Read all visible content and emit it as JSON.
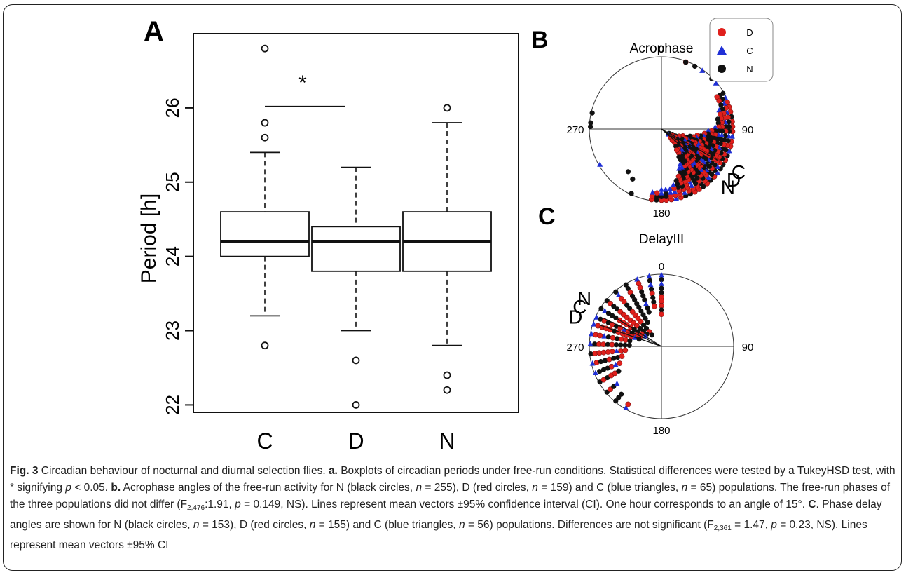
{
  "figure": {
    "panel_a_label": "A",
    "panel_b_label": "B",
    "panel_c_label": "C"
  },
  "chart_data": [
    {
      "type": "box",
      "panel": "A",
      "ylabel": "Period [h]",
      "ylim": [
        21.9,
        27.0
      ],
      "yticks": [
        "22",
        "23",
        "24",
        "25",
        "26"
      ],
      "categories": [
        "C",
        "D",
        "N"
      ],
      "boxes": [
        {
          "name": "C",
          "whisker_low": 23.2,
          "q1": 24.0,
          "median": 24.2,
          "q3": 24.6,
          "whisker_high": 25.4,
          "outliers": [
            22.8,
            25.6,
            25.8,
            26.8
          ]
        },
        {
          "name": "D",
          "whisker_low": 23.0,
          "q1": 23.8,
          "median": 24.2,
          "q3": 24.4,
          "whisker_high": 25.2,
          "outliers": [
            22.0,
            22.6
          ]
        },
        {
          "name": "N",
          "whisker_low": 22.8,
          "q1": 23.8,
          "median": 24.2,
          "q3": 24.6,
          "whisker_high": 25.8,
          "outliers": [
            22.2,
            22.4,
            26.0
          ]
        }
      ],
      "significance": {
        "between": [
          "C",
          "D"
        ],
        "marker": "*",
        "y": 26.02
      }
    },
    {
      "type": "scatter",
      "subtype": "circular",
      "panel": "B",
      "title": "Acrophase",
      "angle_labels": [
        "0",
        "90",
        "180",
        "270"
      ],
      "legend": [
        {
          "name": "D",
          "marker": "circle",
          "color": "#e0201c"
        },
        {
          "name": "C",
          "marker": "triangle",
          "color": "#1f2fd6"
        },
        {
          "name": "N",
          "marker": "circle",
          "color": "#111111"
        }
      ],
      "legend_position": "top-right",
      "mean_vectors": [
        {
          "name": "C",
          "angle_deg": 119,
          "length": 0.9
        },
        {
          "name": "D",
          "angle_deg": 125,
          "length": 0.9
        },
        {
          "name": "N",
          "angle_deg": 131,
          "length": 0.9
        }
      ],
      "series": [
        {
          "name": "N",
          "color": "#111111",
          "n": 255
        },
        {
          "name": "D",
          "color": "#e0201c",
          "n": 159
        },
        {
          "name": "C",
          "color": "#1f2fd6",
          "n": 65
        }
      ]
    },
    {
      "type": "scatter",
      "subtype": "circular",
      "panel": "C",
      "title": "DelayIII",
      "angle_labels": [
        "0",
        "90",
        "180",
        "270"
      ],
      "mean_vectors": [
        {
          "name": "N",
          "angle_deg": 302,
          "length": 0.9
        },
        {
          "name": "C",
          "angle_deg": 296,
          "length": 0.9
        },
        {
          "name": "D",
          "angle_deg": 289,
          "length": 0.9
        }
      ],
      "series": [
        {
          "name": "N",
          "color": "#111111",
          "n": 153
        },
        {
          "name": "D",
          "color": "#e0201c",
          "n": 155
        },
        {
          "name": "C",
          "color": "#1f2fd6",
          "n": 56
        }
      ]
    }
  ],
  "caption": {
    "fig_label": "Fig. 3",
    "title": "Circadian behaviour of nocturnal and diurnal selection flies.",
    "a_label": "a.",
    "a_text_1": "Boxplots of circadian periods under free-run conditions. Statistical differences were tested by a TukeyHSD test, with * signifying",
    "a_p": "p",
    "a_text_2": "< 0.05.",
    "b_label": "b.",
    "b_text_1": "Acrophase angles of the free-run activity for N (black circles,",
    "n": "n",
    "b_n1": "= 255), D (red circles,",
    "b_n2": "= 159) and C (blue triangles,",
    "b_n3": "= 65) populations. The free-run phases of the three populations did not differ (F",
    "b_sub": "2,476",
    "b_stat": ":1.91,",
    "b_p": "p",
    "b_text_2": "= 0.149, NS). Lines represent mean vectors ±95% confidence interval (CI). One hour corresponds to an angle of 15°.",
    "c_label": "C",
    "c_text_1": ". Phase delay angles are shown for N (black circles,",
    "c_n1": "= 153), D (red circles,",
    "c_n2": "= 155) and C (blue triangles,",
    "c_n3": "= 56) populations. Differences are not significant (F",
    "c_sub": "2,361",
    "c_stat": "= 1.47,",
    "c_p": "p",
    "c_text_2": "= 0.23, NS). Lines represent mean vectors ±95% CI"
  }
}
